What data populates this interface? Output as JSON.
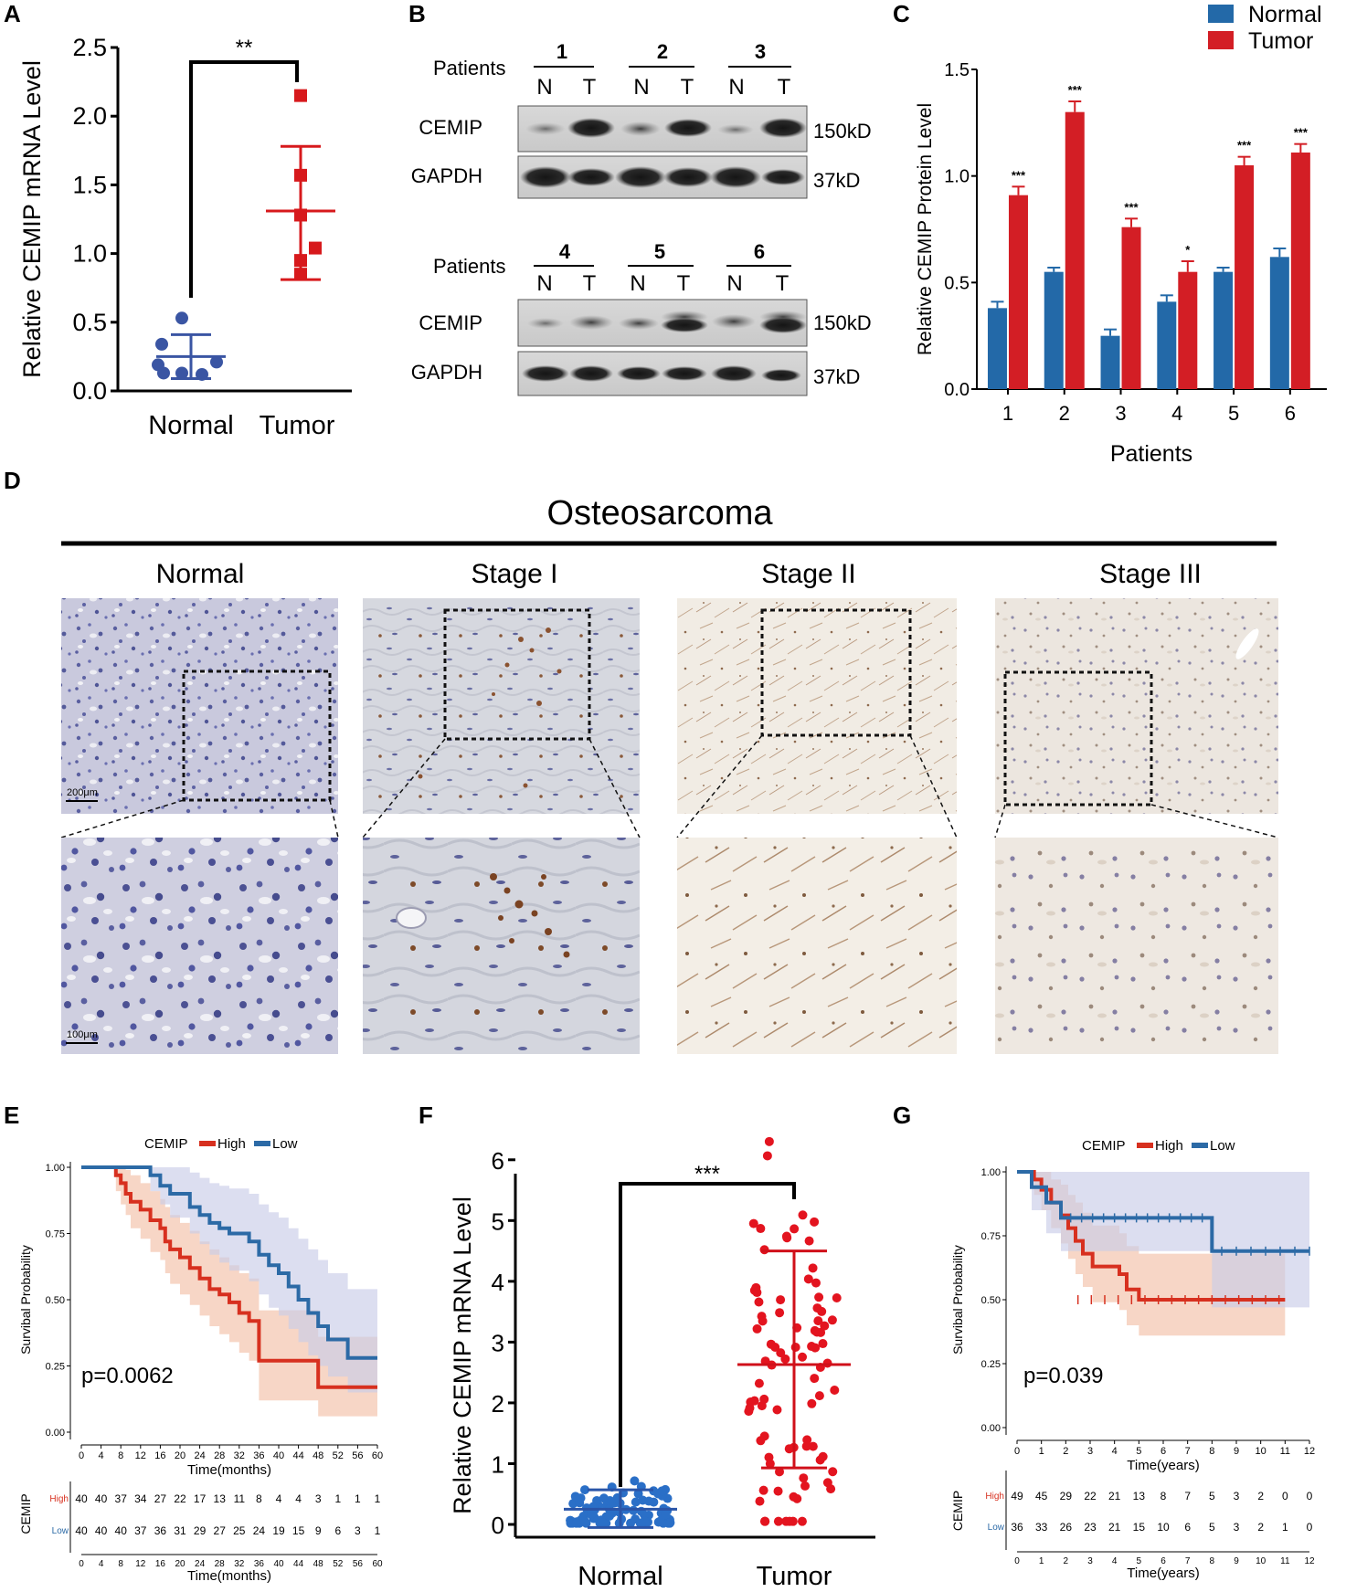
{
  "panels": {
    "A": "A",
    "B": "B",
    "C": "C",
    "D": "D",
    "E": "E",
    "F": "F",
    "G": "G"
  },
  "colors": {
    "normal": "#3a55a3",
    "tumor": "#d7191c",
    "bar_normal": "#2369a8",
    "bar_tumor": "#d31e25",
    "km_high": "#d7301f",
    "km_low": "#2c6aa6",
    "km_high_band": "#f2c0a8",
    "km_low_band": "#c9cce8"
  },
  "chart_data": [
    {
      "panel": "A",
      "type": "scatter",
      "ylabel": "Relative CEMIP mRNA Level",
      "ylim": [
        0,
        2.5
      ],
      "yticks": [
        "0.0",
        "0.5",
        "1.0",
        "1.5",
        "2.0",
        "2.5"
      ],
      "categories": [
        "Normal",
        "Tumor"
      ],
      "significance": "**",
      "series": [
        {
          "name": "Normal",
          "values": [
            0.53,
            0.34,
            0.21,
            0.19,
            0.13,
            0.13,
            0.12
          ],
          "mean": 0.25,
          "sd_low": 0.09,
          "sd_high": 0.41
        },
        {
          "name": "Tumor",
          "values": [
            2.15,
            1.57,
            1.28,
            1.04,
            0.95,
            0.85
          ],
          "mean": 1.31,
          "sd_low": 0.81,
          "sd_high": 1.78
        }
      ]
    },
    {
      "panel": "C",
      "type": "bar",
      "xlabel": "Patients",
      "ylabel": "Relative CEMIP Protein Level",
      "ylim": [
        0,
        1.5
      ],
      "yticks": [
        "0.0",
        "0.5",
        "1.0",
        "1.5"
      ],
      "categories": [
        "1",
        "2",
        "3",
        "4",
        "5",
        "6"
      ],
      "legend": [
        "Normal",
        "Tumor"
      ],
      "series": [
        {
          "name": "Normal",
          "values": [
            0.38,
            0.55,
            0.25,
            0.41,
            0.55,
            0.62
          ],
          "errors": [
            0.03,
            0.02,
            0.03,
            0.03,
            0.02,
            0.04
          ]
        },
        {
          "name": "Tumor",
          "values": [
            0.91,
            1.3,
            0.76,
            0.55,
            1.05,
            1.11
          ],
          "errors": [
            0.04,
            0.05,
            0.04,
            0.05,
            0.04,
            0.04
          ]
        }
      ],
      "significance": [
        "***",
        "***",
        "***",
        "*",
        "***",
        "***"
      ]
    },
    {
      "panel": "E",
      "type": "line",
      "title_prefix": "CEMIP",
      "legend": [
        "High",
        "Low"
      ],
      "xlabel": "Time(months)",
      "ylabel": "Survibal Probability",
      "xticks": [
        "0",
        "4",
        "8",
        "12",
        "16",
        "20",
        "24",
        "28",
        "32",
        "36",
        "40",
        "44",
        "48",
        "52",
        "56",
        "60"
      ],
      "yticks": [
        "0.00",
        "0.25",
        "0.50",
        "0.75",
        "1.00"
      ],
      "xlim": [
        0,
        60
      ],
      "ylim": [
        0,
        1
      ],
      "pvalue": "p=0.0062",
      "series": [
        {
          "name": "High",
          "x": [
            0,
            7,
            8,
            9,
            10,
            12,
            14,
            16,
            17,
            18,
            20,
            22,
            24,
            26,
            28,
            30,
            32,
            34,
            36,
            40,
            44,
            48,
            60
          ],
          "y": [
            1,
            0.97,
            0.94,
            0.9,
            0.87,
            0.84,
            0.8,
            0.77,
            0.72,
            0.69,
            0.66,
            0.62,
            0.58,
            0.54,
            0.52,
            0.49,
            0.45,
            0.42,
            0.27,
            0.27,
            0.27,
            0.17,
            0.17
          ],
          "band_high": [
            1,
            1,
            1,
            0.99,
            0.97,
            0.94,
            0.91,
            0.88,
            0.85,
            0.82,
            0.79,
            0.76,
            0.72,
            0.69,
            0.66,
            0.63,
            0.6,
            0.58,
            0.46,
            0.46,
            0.46,
            0.36,
            0.36
          ],
          "band_low": [
            1,
            0.91,
            0.86,
            0.82,
            0.77,
            0.73,
            0.68,
            0.65,
            0.6,
            0.56,
            0.52,
            0.48,
            0.44,
            0.4,
            0.37,
            0.34,
            0.3,
            0.27,
            0.12,
            0.12,
            0.12,
            0.06,
            0.06
          ]
        },
        {
          "name": "Low",
          "x": [
            0,
            12,
            14,
            16,
            18,
            22,
            24,
            26,
            28,
            30,
            32,
            34,
            36,
            38,
            40,
            42,
            44,
            46,
            48,
            50,
            54,
            60
          ],
          "y": [
            1,
            1,
            0.97,
            0.93,
            0.9,
            0.85,
            0.82,
            0.79,
            0.77,
            0.75,
            0.75,
            0.72,
            0.67,
            0.63,
            0.6,
            0.55,
            0.5,
            0.45,
            0.4,
            0.35,
            0.28,
            0.28
          ],
          "band_high": [
            1,
            1,
            1,
            1,
            1,
            0.98,
            0.96,
            0.94,
            0.93,
            0.92,
            0.92,
            0.9,
            0.86,
            0.83,
            0.81,
            0.77,
            0.73,
            0.69,
            0.65,
            0.6,
            0.54,
            0.54
          ],
          "band_low": [
            1,
            1,
            0.91,
            0.86,
            0.81,
            0.75,
            0.71,
            0.67,
            0.64,
            0.61,
            0.61,
            0.57,
            0.52,
            0.47,
            0.44,
            0.39,
            0.34,
            0.29,
            0.25,
            0.21,
            0.15,
            0.15
          ]
        }
      ],
      "risk_table": {
        "label": "CEMIP",
        "rows": [
          {
            "name": "High",
            "values": [
              "40",
              "40",
              "37",
              "34",
              "27",
              "22",
              "17",
              "13",
              "11",
              "8",
              "4",
              "4",
              "3",
              "1",
              "1",
              "1"
            ]
          },
          {
            "name": "Low",
            "values": [
              "40",
              "40",
              "40",
              "37",
              "36",
              "31",
              "29",
              "27",
              "25",
              "24",
              "19",
              "15",
              "9",
              "6",
              "3",
              "1"
            ]
          }
        ],
        "xlabel": "Time(months)"
      }
    },
    {
      "panel": "F",
      "type": "scatter",
      "ylabel": "Relative CEMIP mRNA Level",
      "ylim": [
        0,
        6.5
      ],
      "yticks": [
        "0",
        "1",
        "2",
        "3",
        "4",
        "5",
        "6"
      ],
      "categories": [
        "Normal",
        "Tumor"
      ],
      "significance": "***",
      "series": [
        {
          "name": "Normal",
          "mean": 0.25,
          "sd_low": -0.05,
          "sd_high": 0.57,
          "n": 90
        },
        {
          "name": "Tumor",
          "mean": 2.63,
          "sd_low": 0.93,
          "sd_high": 4.5,
          "n": 88
        }
      ]
    },
    {
      "panel": "G",
      "type": "line",
      "title_prefix": "CEMIP",
      "legend": [
        "High",
        "Low"
      ],
      "xlabel": "Time(years)",
      "ylabel": "Survibal Probability",
      "xticks": [
        "0",
        "1",
        "2",
        "3",
        "4",
        "5",
        "6",
        "7",
        "8",
        "9",
        "10",
        "11",
        "12"
      ],
      "yticks": [
        "0.00",
        "0.25",
        "0.50",
        "0.75",
        "1.00"
      ],
      "xlim": [
        0,
        12
      ],
      "ylim": [
        0,
        1
      ],
      "pvalue": "p=0.039",
      "series": [
        {
          "name": "High",
          "x": [
            0,
            0.7,
            1.0,
            1.4,
            1.8,
            2.1,
            2.4,
            2.7,
            3.1,
            3.8,
            4.2,
            4.5,
            5,
            6,
            8,
            11
          ],
          "y": [
            1,
            0.97,
            0.93,
            0.88,
            0.83,
            0.78,
            0.73,
            0.68,
            0.63,
            0.63,
            0.6,
            0.54,
            0.5,
            0.5,
            0.5,
            0.5
          ],
          "band_high": [
            1,
            1,
            1,
            0.97,
            0.95,
            0.91,
            0.88,
            0.84,
            0.79,
            0.79,
            0.76,
            0.71,
            0.68,
            0.68,
            0.68,
            0.68
          ],
          "band_low": [
            1,
            0.91,
            0.85,
            0.78,
            0.72,
            0.66,
            0.6,
            0.55,
            0.49,
            0.49,
            0.46,
            0.4,
            0.36,
            0.36,
            0.36,
            0.36
          ]
        },
        {
          "name": "Low",
          "x": [
            0,
            0.6,
            1.2,
            1.8,
            8,
            12
          ],
          "y": [
            1,
            0.94,
            0.88,
            0.82,
            0.69,
            0.69
          ],
          "band_high": [
            1,
            1,
            1,
            1,
            1,
            1
          ],
          "band_low": [
            1,
            0.85,
            0.76,
            0.69,
            0.47,
            0.47
          ]
        }
      ],
      "risk_table": {
        "label": "CEMIP",
        "rows": [
          {
            "name": "High",
            "values": [
              "49",
              "45",
              "29",
              "22",
              "21",
              "13",
              "8",
              "7",
              "5",
              "3",
              "2",
              "0",
              "0"
            ]
          },
          {
            "name": "Low",
            "values": [
              "36",
              "33",
              "26",
              "23",
              "21",
              "15",
              "10",
              "6",
              "5",
              "3",
              "2",
              "1",
              "0"
            ]
          }
        ],
        "xlabel": "Time(years)"
      }
    }
  ],
  "western_blot": {
    "patients_label": "Patients",
    "groups_top": [
      "1",
      "2",
      "3"
    ],
    "groups_bottom": [
      "4",
      "5",
      "6"
    ],
    "lane_labels": [
      "N",
      "T"
    ],
    "rows": [
      {
        "protein": "CEMIP",
        "size": "150kD"
      },
      {
        "protein": "GAPDH",
        "size": "37kD"
      }
    ]
  },
  "ihc": {
    "title": "Osteosarcoma",
    "columns": [
      "Normal",
      "Stage I",
      "Stage II",
      "Stage III"
    ],
    "scalebar_top": "200μm",
    "scalebar_bottom": "100μm"
  }
}
